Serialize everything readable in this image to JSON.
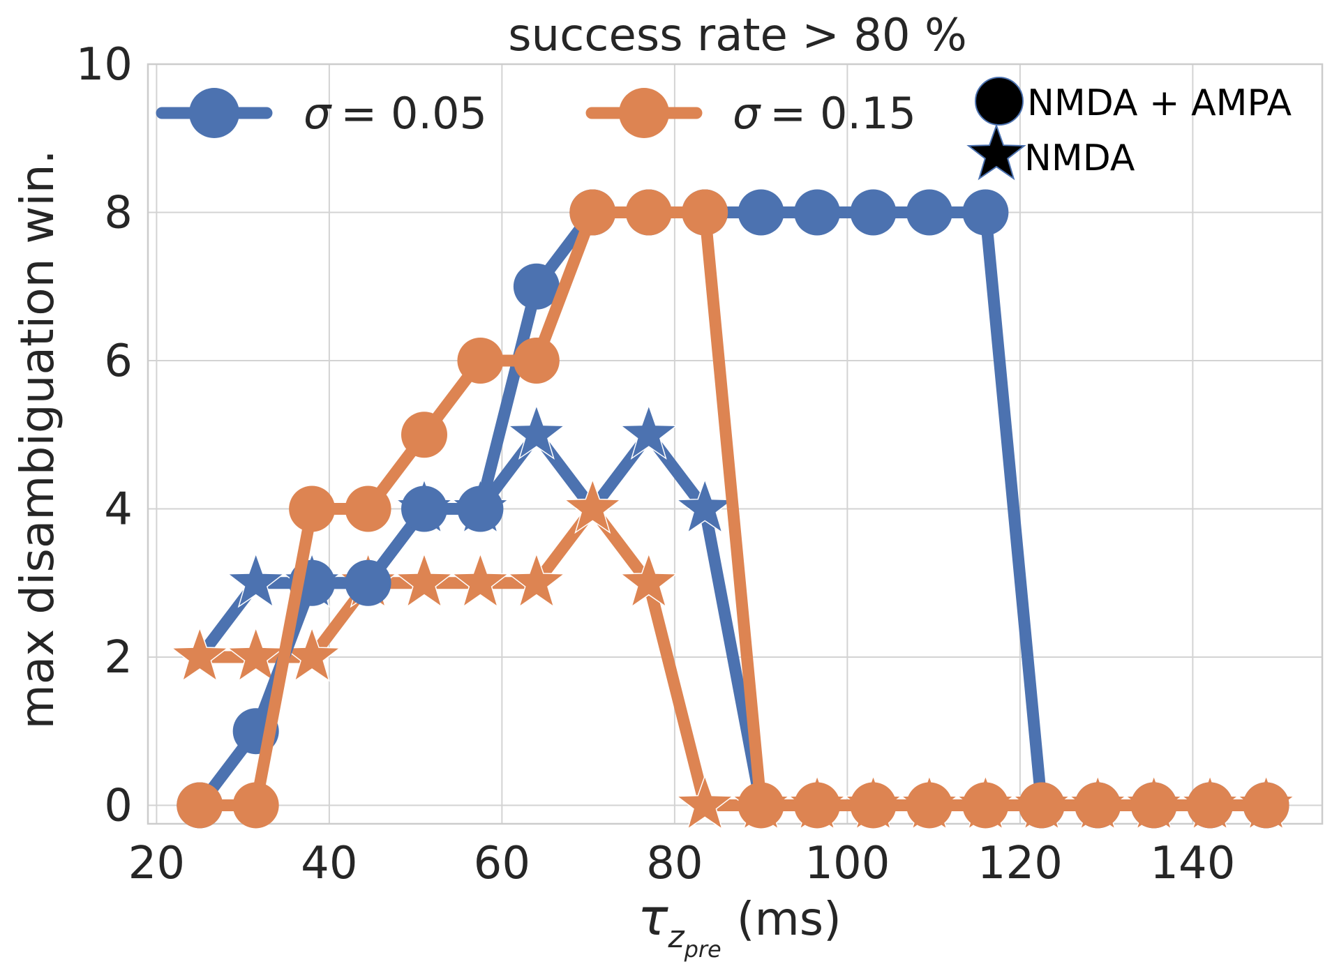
{
  "chart_data": {
    "type": "line",
    "title": "success rate > 80 %",
    "xlabel_main": "τ",
    "xlabel_sub": "z",
    "xlabel_subsub": "pre",
    "xlabel_unit": "(ms)",
    "ylabel": "max disambiguation win.",
    "xlim": [
      19,
      155
    ],
    "ylim": [
      -0.25,
      10
    ],
    "xticks": [
      20,
      40,
      60,
      80,
      100,
      120,
      140
    ],
    "yticks": [
      0,
      2,
      4,
      6,
      8,
      10
    ],
    "grid": true,
    "legend_placement": "top",
    "x": [
      25,
      31.5,
      38,
      44.5,
      51,
      57.5,
      64,
      70.5,
      77,
      83.5,
      90,
      96.5,
      103,
      109.5,
      116,
      122.5,
      129,
      135.5,
      142,
      148.5
    ],
    "series": [
      {
        "name": "σ = 0.05",
        "label_symbol": "σ",
        "label_value": "= 0.05",
        "color": "#4c72b0",
        "marker": "circle",
        "group": "NMDA + AMPA",
        "values": [
          0,
          1,
          3,
          3,
          4,
          4,
          7,
          8,
          8,
          8,
          8,
          8,
          8,
          8,
          8,
          0,
          0,
          0,
          0,
          0
        ]
      },
      {
        "name": "σ = 0.15",
        "label_symbol": "σ",
        "label_value": "= 0.15",
        "color": "#dd8452",
        "marker": "circle",
        "group": "NMDA + AMPA",
        "values": [
          0,
          0,
          4,
          4,
          5,
          6,
          6,
          8,
          8,
          8,
          0,
          0,
          0,
          0,
          0,
          0,
          0,
          0,
          0,
          0
        ]
      },
      {
        "name": "σ = 0.05",
        "color": "#4c72b0",
        "marker": "star",
        "group": "NMDA",
        "values": [
          2,
          3,
          3,
          3,
          4,
          4,
          5,
          4,
          5,
          4,
          0,
          0,
          0,
          0,
          0,
          0,
          0,
          0,
          0,
          0
        ]
      },
      {
        "name": "σ = 0.15",
        "color": "#dd8452",
        "marker": "star",
        "group": "NMDA",
        "values": [
          2,
          2,
          2,
          3,
          3,
          3,
          3,
          4,
          3,
          0,
          0,
          0,
          0,
          0,
          0,
          0,
          0,
          0,
          0,
          0
        ]
      }
    ],
    "marker_legend": [
      {
        "marker": "circle",
        "label": "NMDA + AMPA"
      },
      {
        "marker": "star",
        "label": "NMDA"
      }
    ]
  }
}
